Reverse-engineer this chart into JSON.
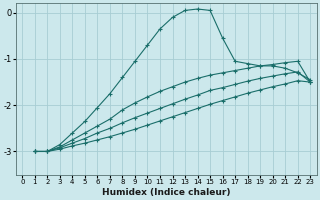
{
  "xlabel": "Humidex (Indice chaleur)",
  "ylabel": "",
  "xlim": [
    -0.5,
    23.5
  ],
  "ylim": [
    -3.5,
    0.2
  ],
  "background_color": "#cce8ec",
  "grid_color": "#a8cdd4",
  "line_color": "#1a6e6a",
  "xticks": [
    0,
    1,
    2,
    3,
    4,
    5,
    6,
    7,
    8,
    9,
    10,
    11,
    12,
    13,
    14,
    15,
    16,
    17,
    18,
    19,
    20,
    21,
    22,
    23
  ],
  "yticks": [
    0,
    -1,
    -2,
    -3
  ],
  "series": [
    [
      null,
      -3.0,
      -3.0,
      -2.85,
      -2.6,
      -2.35,
      -2.05,
      -1.75,
      -1.4,
      -1.05,
      -0.7,
      -0.35,
      -0.1,
      0.05,
      0.08,
      0.05,
      -0.55,
      -1.05,
      -1.1,
      -1.15,
      -1.15,
      -1.2,
      -1.3,
      -1.45
    ],
    [
      null,
      -3.0,
      -3.0,
      -2.9,
      -2.75,
      -2.6,
      -2.45,
      -2.3,
      -2.1,
      -1.95,
      -1.82,
      -1.7,
      -1.6,
      -1.5,
      -1.42,
      -1.35,
      -1.3,
      -1.25,
      -1.2,
      -1.15,
      -1.12,
      -1.08,
      -1.05,
      -1.5
    ],
    [
      null,
      -3.0,
      -3.0,
      -2.92,
      -2.82,
      -2.72,
      -2.6,
      -2.5,
      -2.38,
      -2.27,
      -2.17,
      -2.07,
      -1.97,
      -1.87,
      -1.78,
      -1.68,
      -1.62,
      -1.55,
      -1.48,
      -1.42,
      -1.37,
      -1.32,
      -1.28,
      -1.5
    ],
    [
      null,
      -3.0,
      -3.0,
      -2.95,
      -2.88,
      -2.82,
      -2.75,
      -2.68,
      -2.6,
      -2.52,
      -2.43,
      -2.34,
      -2.25,
      -2.16,
      -2.07,
      -1.98,
      -1.9,
      -1.82,
      -1.74,
      -1.67,
      -1.6,
      -1.54,
      -1.47,
      -1.5
    ]
  ]
}
